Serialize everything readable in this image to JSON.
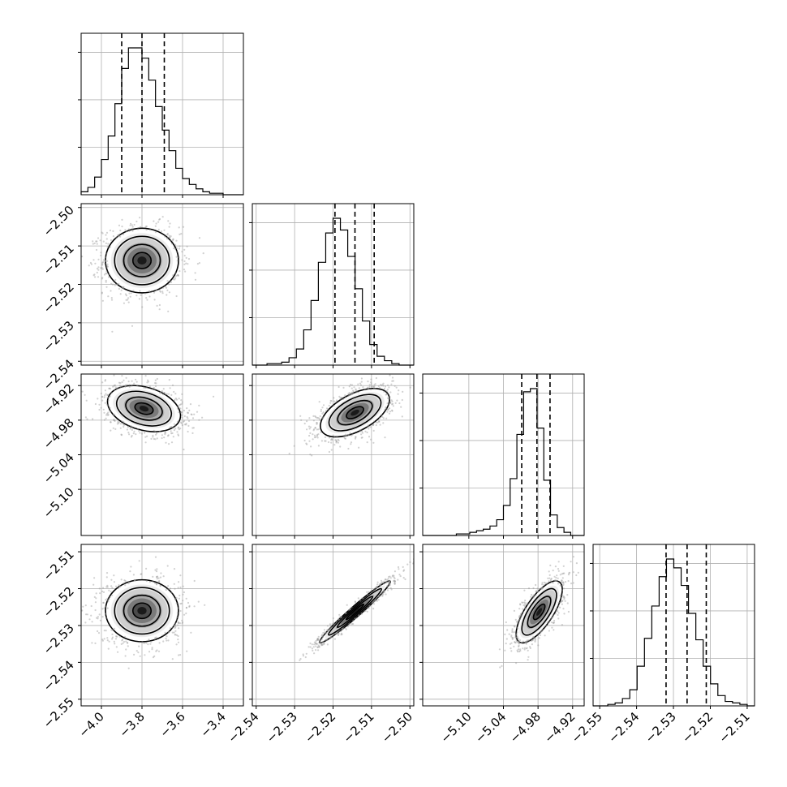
{
  "chart_data": {
    "type": "corner",
    "grid": true,
    "parameters": [
      {
        "index": 0,
        "range": [
          -4.1,
          -3.3
        ],
        "ticks": [
          -4.0,
          -3.8,
          -3.6,
          -3.4
        ],
        "tick_labels": [
          "−4.0",
          "−3.8",
          "−3.6",
          "−3.4"
        ],
        "quantiles": [
          -3.9,
          -3.8,
          -3.69
        ]
      },
      {
        "index": 1,
        "range": [
          -2.541,
          -2.499
        ],
        "ticks": [
          -2.54,
          -2.53,
          -2.52,
          -2.51,
          -2.5
        ],
        "tick_labels": [
          "−2.54",
          "−2.53",
          "−2.52",
          "−2.51",
          "−2.50"
        ],
        "quantiles": [
          -2.5195,
          -2.5143,
          -2.5093
        ]
      },
      {
        "index": 2,
        "range": [
          -5.18,
          -4.9
        ],
        "ticks": [
          -5.1,
          -5.04,
          -4.98,
          -4.92
        ],
        "tick_labels": [
          "−5.10",
          "−5.04",
          "−4.98",
          "−4.92"
        ],
        "quantiles": [
          -5.0083,
          -4.9819,
          -4.9592
        ]
      },
      {
        "index": 3,
        "range": [
          -2.5518,
          -2.508
        ],
        "ticks": [
          -2.55,
          -2.54,
          -2.53,
          -2.52,
          -2.51
        ],
        "tick_labels": [
          "−2.55",
          "−2.54",
          "−2.53",
          "−2.52",
          "−2.51"
        ],
        "quantiles": [
          -2.532,
          -2.5263,
          -2.5211
        ]
      }
    ],
    "diagonal_histograms": [
      {
        "param": 0,
        "bins": 24,
        "counts": [
          2,
          5,
          12,
          24,
          40,
          62,
          86,
          100,
          100,
          93,
          78,
          60,
          44,
          30,
          18,
          11,
          7,
          4,
          2,
          1,
          1,
          0,
          0,
          0
        ]
      },
      {
        "param": 1,
        "bins": 22,
        "counts": [
          0,
          0,
          1,
          1,
          2,
          5,
          11,
          24,
          44,
          70,
          90,
          100,
          92,
          74,
          52,
          30,
          14,
          6,
          3,
          1,
          0,
          0
        ]
      },
      {
        "param": 2,
        "bins": 24,
        "counts": [
          0,
          0,
          0,
          0,
          0,
          1,
          1,
          2,
          3,
          4,
          6,
          10,
          19,
          36,
          64,
          91,
          93,
          68,
          35,
          13,
          5,
          2,
          0,
          0
        ]
      },
      {
        "param": 3,
        "bins": 22,
        "counts": [
          0,
          0,
          1,
          2,
          5,
          11,
          27,
          46,
          68,
          88,
          100,
          94,
          82,
          63,
          45,
          27,
          15,
          7,
          3,
          2,
          1,
          0
        ]
      }
    ],
    "density_panels": [
      {
        "x_param": 0,
        "y_param": 1,
        "center": [
          -3.8,
          -2.5138
        ],
        "sigma": [
          0.09,
          0.0042
        ],
        "correlation": 0.0
      },
      {
        "x_param": 0,
        "y_param": 2,
        "center": [
          -3.79,
          -4.96
        ],
        "sigma": [
          0.09,
          0.02
        ],
        "correlation": -0.3
      },
      {
        "x_param": 1,
        "y_param": 2,
        "center": [
          -2.5143,
          -4.967
        ],
        "sigma": [
          0.0045,
          0.021
        ],
        "correlation": 0.55
      },
      {
        "x_param": 0,
        "y_param": 3,
        "center": [
          -3.8,
          -2.526
        ],
        "sigma": [
          0.09,
          0.0042
        ],
        "correlation": 0.0
      },
      {
        "x_param": 1,
        "y_param": 3,
        "center": [
          -2.5143,
          -2.5263
        ],
        "sigma": [
          0.0046,
          0.0042
        ],
        "correlation": 0.975
      },
      {
        "x_param": 2,
        "y_param": 3,
        "center": [
          -4.978,
          -2.5263
        ],
        "sigma": [
          0.02,
          0.0042
        ],
        "correlation": 0.72
      }
    ],
    "contour_levels_sigma": [
      0.5,
      1.0,
      1.5,
      2.0
    ]
  }
}
